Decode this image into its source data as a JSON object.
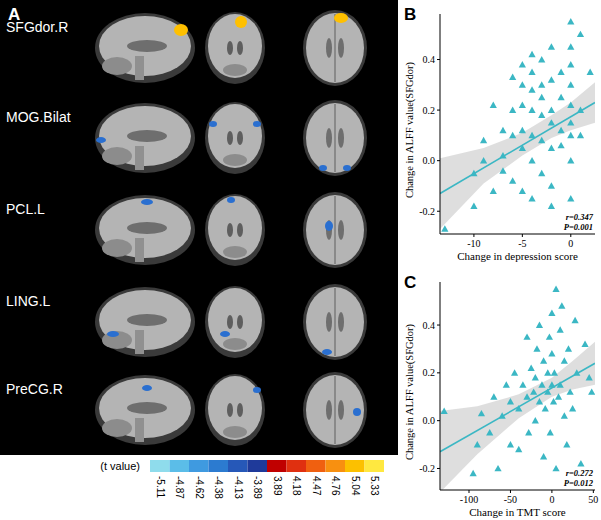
{
  "panel_a": {
    "label": "A",
    "regions": [
      {
        "name": "SFGdor.R",
        "color": "#ffc000"
      },
      {
        "name": "MOG.Bilat",
        "color": "#2a6fd0"
      },
      {
        "name": "PCL.L",
        "color": "#2a6fd0"
      },
      {
        "name": "LING.L",
        "color": "#2a6fd0"
      },
      {
        "name": "PreCG.R",
        "color": "#2a6fd0"
      }
    ],
    "colorbar": {
      "title": "(t value)",
      "ticks": [
        -5.11,
        -4.87,
        -4.62,
        -4.38,
        -4.13,
        -3.89,
        3.89,
        4.18,
        4.47,
        4.76,
        5.04,
        5.33
      ],
      "colors": [
        "#8fdcec",
        "#5bbde8",
        "#3f9ae0",
        "#2c7bd0",
        "#2658b8",
        "#1f3a9a",
        "#c00000",
        "#e03010",
        "#f06010",
        "#f89010",
        "#fcc000",
        "#ffe840"
      ]
    }
  },
  "chart_data": [
    {
      "type": "scatter",
      "panel_label": "B",
      "x_label": "Change in depression score",
      "y_label": "Change in ALFF value(SFGdor)",
      "annotations": [
        "r=0.347",
        "P=0.001"
      ],
      "color": "#3bb7c4",
      "marker": "triangle",
      "xlim": [
        -13.5,
        2.5
      ],
      "ylim": [
        -0.29,
        0.58
      ],
      "xticks": [
        -10,
        -5,
        0
      ],
      "yticks": [
        -0.2,
        {
          "value": 0,
          "label": "0.0"
        },
        0.2,
        0.4
      ],
      "x": [
        -13,
        -10,
        -10,
        -9,
        -9,
        -8,
        -8,
        -7,
        -7,
        -7,
        -6,
        -6,
        -6,
        -6,
        -5,
        -5,
        -5,
        -5,
        -5,
        -5,
        -4,
        -4,
        -4,
        -4,
        -4,
        -4,
        -4,
        -3,
        -3,
        -3,
        -3,
        -3,
        -3,
        -2,
        -2,
        -2,
        -2,
        -2,
        -2,
        -2,
        -1,
        -1,
        -1,
        -1,
        0,
        0,
        0,
        0,
        0,
        0,
        0,
        0,
        0,
        1,
        1,
        1,
        2
      ],
      "values": [
        -0.27,
        -0.18,
        -0.05,
        0.08,
        0.0,
        -0.12,
        0.22,
        0.12,
        0.02,
        -0.04,
        0.33,
        0.2,
        0.1,
        -0.08,
        0.38,
        0.3,
        0.22,
        0.12,
        0.05,
        -0.12,
        0.42,
        0.35,
        0.28,
        0.2,
        0.1,
        0.0,
        -0.15,
        0.4,
        0.3,
        0.25,
        0.18,
        0.08,
        -0.05,
        0.45,
        0.32,
        0.2,
        0.15,
        0.05,
        -0.1,
        -0.18,
        0.35,
        0.25,
        0.12,
        0.06,
        0.55,
        0.45,
        0.38,
        0.3,
        0.22,
        0.15,
        0.1,
        0.0,
        -0.15,
        0.5,
        0.2,
        0.1,
        0.35
      ],
      "fit": {
        "x": [
          -13.5,
          2.5
        ],
        "values": [
          -0.13,
          0.23
        ]
      },
      "band": {
        "x": [
          -13.5,
          -9,
          -5,
          -2,
          0,
          2.5
        ],
        "lower": [
          -0.27,
          -0.09,
          0.02,
          0.09,
          0.12,
          0.15
        ],
        "upper": [
          0.01,
          0.05,
          0.11,
          0.18,
          0.23,
          0.31
        ]
      }
    },
    {
      "type": "scatter",
      "panel_label": "C",
      "x_label": "Change in TMT score",
      "y_label": "Change in ALFF value(SFGdor)",
      "annotations": [
        "r=0.272",
        "P=0.012"
      ],
      "color": "#3bb7c4",
      "marker": "triangle",
      "xlim": [
        -135,
        52
      ],
      "ylim": [
        -0.29,
        0.58
      ],
      "xticks": [
        -100,
        -50,
        0,
        50
      ],
      "yticks": [
        -0.2,
        {
          "value": 0,
          "label": "0.0"
        },
        0.2,
        0.4
      ],
      "x": [
        -130,
        -95,
        -90,
        -85,
        -75,
        -70,
        -65,
        -60,
        -55,
        -50,
        -50,
        -45,
        -40,
        -40,
        -35,
        -30,
        -30,
        -28,
        -25,
        -22,
        -20,
        -20,
        -18,
        -15,
        -15,
        -12,
        -10,
        -10,
        -8,
        -5,
        -5,
        -3,
        -2,
        0,
        0,
        0,
        2,
        3,
        5,
        5,
        8,
        10,
        10,
        12,
        15,
        15,
        18,
        20,
        22,
        25,
        28,
        30,
        35,
        40,
        45,
        48
      ],
      "values": [
        0.04,
        -0.22,
        -0.1,
        0.03,
        -0.05,
        0.1,
        -0.2,
        0.02,
        0.15,
        -0.1,
        0.08,
        0.2,
        0.05,
        -0.12,
        0.15,
        0.35,
        0.1,
        -0.05,
        0.22,
        0.12,
        0.18,
        0.0,
        0.3,
        0.08,
        0.4,
        0.15,
        0.25,
        -0.15,
        0.05,
        0.2,
        0.12,
        0.35,
        -0.05,
        0.15,
        0.45,
        0.28,
        0.08,
        0.2,
        -0.2,
        0.55,
        0.1,
        0.38,
        0.15,
        0.48,
        0.02,
        0.25,
        -0.1,
        0.3,
        0.12,
        0.05,
        0.42,
        0.2,
        -0.18,
        0.32,
        0.18,
        0.12
      ],
      "fit": {
        "x": [
          -135,
          52
        ],
        "values": [
          -0.13,
          0.24
        ]
      },
      "band": {
        "x": [
          -135,
          -90,
          -40,
          0,
          25,
          52
        ],
        "lower": [
          -0.3,
          -0.14,
          0.01,
          0.1,
          0.13,
          0.15
        ],
        "upper": [
          0.04,
          0.06,
          0.11,
          0.18,
          0.25,
          0.33
        ]
      }
    }
  ]
}
